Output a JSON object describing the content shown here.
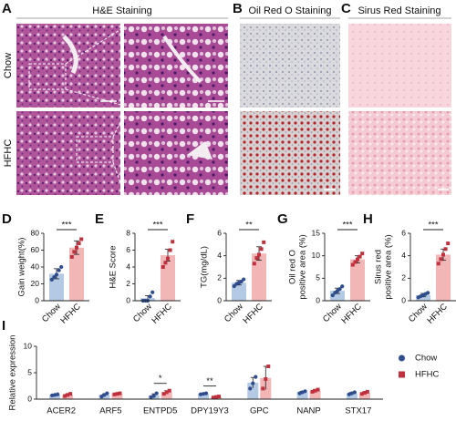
{
  "figure": {
    "panel_labels": [
      "A",
      "B",
      "C",
      "D",
      "E",
      "F",
      "G",
      "H",
      "I"
    ],
    "staining_titles": [
      "H&E Staining",
      "Oil Red O Staining",
      "Sirus Red Staining"
    ],
    "row_labels": [
      "Chow",
      "HFHC"
    ]
  },
  "chart_data": [
    {
      "type": "bar",
      "ylabel": [
        "Gain weight(%)"
      ],
      "categories": [
        "Chow",
        "HFHC"
      ],
      "values": [
        32,
        63
      ],
      "errors": [
        6,
        8
      ],
      "points": [
        [
          25,
          28,
          31,
          36,
          40
        ],
        [
          52,
          58,
          63,
          68,
          73
        ]
      ],
      "colors": [
        "#b4c9e4",
        "#f2b6b6"
      ],
      "point_colors": [
        "#2f4d8c",
        "#c0303d"
      ],
      "markers": [
        "circle",
        "square"
      ],
      "significance": "***",
      "ylim": [
        0,
        80
      ],
      "yticks": [
        0,
        20,
        40,
        60,
        80
      ]
    },
    {
      "type": "bar",
      "ylabel": [
        "H&E Score"
      ],
      "categories": [
        "Chow",
        "HFHC"
      ],
      "values": [
        0.3,
        5.4
      ],
      "errors": [
        0.3,
        0.7
      ],
      "points": [
        [
          0,
          0,
          0,
          0.5,
          1
        ],
        [
          4,
          4.5,
          5,
          6,
          7
        ]
      ],
      "colors": [
        "#b4c9e4",
        "#f2b6b6"
      ],
      "point_colors": [
        "#2f4d8c",
        "#c0303d"
      ],
      "markers": [
        "circle",
        "square"
      ],
      "significance": "***",
      "ylim": [
        0,
        8
      ],
      "yticks": [
        0,
        2,
        4,
        6,
        8
      ]
    },
    {
      "type": "bar",
      "ylabel": [
        "TG(mg/dL)"
      ],
      "categories": [
        "Chow",
        "HFHC"
      ],
      "values": [
        1.6,
        4.2
      ],
      "errors": [
        0.2,
        0.6
      ],
      "points": [
        [
          1.3,
          1.5,
          1.6,
          1.7,
          1.9
        ],
        [
          3.3,
          3.8,
          4.1,
          4.6,
          5.2
        ]
      ],
      "colors": [
        "#b4c9e4",
        "#f2b6b6"
      ],
      "point_colors": [
        "#2f4d8c",
        "#c0303d"
      ],
      "markers": [
        "circle",
        "square"
      ],
      "significance": "**",
      "ylim": [
        0,
        6
      ],
      "yticks": [
        0,
        2,
        4,
        6
      ]
    },
    {
      "type": "bar",
      "ylabel": [
        "Oil red O",
        "positive area (%)"
      ],
      "categories": [
        "Chow",
        "HFHC"
      ],
      "values": [
        2.2,
        9.2
      ],
      "errors": [
        0.6,
        0.8
      ],
      "points": [
        [
          1.2,
          1.8,
          2.2,
          2.6,
          3.2
        ],
        [
          8,
          8.6,
          9.2,
          9.8,
          10.5
        ]
      ],
      "colors": [
        "#b4c9e4",
        "#f2b6b6"
      ],
      "point_colors": [
        "#2f4d8c",
        "#c0303d"
      ],
      "markers": [
        "circle",
        "square"
      ],
      "significance": "***",
      "ylim": [
        0,
        15
      ],
      "yticks": [
        0,
        5,
        10,
        15
      ]
    },
    {
      "type": "bar",
      "ylabel": [
        "Sirus red",
        "positive area (%)"
      ],
      "categories": [
        "Chow",
        "HFHC"
      ],
      "values": [
        0.5,
        4.1
      ],
      "errors": [
        0.15,
        0.5
      ],
      "points": [
        [
          0.3,
          0.4,
          0.5,
          0.6,
          0.7
        ],
        [
          3.3,
          3.7,
          4.1,
          4.6,
          5.1
        ]
      ],
      "colors": [
        "#b4c9e4",
        "#f2b6b6"
      ],
      "point_colors": [
        "#2f4d8c",
        "#c0303d"
      ],
      "markers": [
        "circle",
        "square"
      ],
      "significance": "***",
      "ylim": [
        0,
        6
      ],
      "yticks": [
        0,
        2,
        4,
        6
      ]
    },
    {
      "type": "grouped_bar",
      "ylabel": "Relative expression",
      "categories": [
        "ACER2",
        "ARF5",
        "ENTPD5",
        "DPY19Y3",
        "GPC",
        "NANP",
        "STX17"
      ],
      "series": [
        {
          "name": "Chow",
          "color": "#b4c9e4",
          "point_color": "#2f4d8c",
          "marker": "circle",
          "values": [
            0.8,
            0.8,
            0.7,
            1.0,
            3.1,
            1.3,
            1.1
          ],
          "errors": [
            0.1,
            0.2,
            0.3,
            0.1,
            1.0,
            0.2,
            0.2
          ],
          "points": [
            [
              0.7,
              0.8,
              0.9
            ],
            [
              0.5,
              0.8,
              1.1
            ],
            [
              0.4,
              0.6,
              1.1
            ],
            [
              0.9,
              1.0,
              1.1
            ],
            [
              2.0,
              3.0,
              4.2
            ],
            [
              1.1,
              1.3,
              1.5
            ],
            [
              0.9,
              1.1,
              1.3
            ]
          ]
        },
        {
          "name": "HFHC",
          "color": "#f2b6b6",
          "point_color": "#c0303d",
          "marker": "square",
          "values": [
            0.8,
            1.0,
            1.3,
            0.4,
            4.0,
            1.6,
            1.2
          ],
          "errors": [
            0.2,
            0.1,
            0.3,
            0.1,
            2.2,
            0.2,
            0.2
          ],
          "points": [
            [
              0.6,
              0.8,
              1.0
            ],
            [
              0.9,
              1.0,
              1.1
            ],
            [
              1.0,
              1.3,
              1.6
            ],
            [
              0.3,
              0.4,
              0.5
            ],
            [
              2.0,
              3.8,
              6.2
            ],
            [
              1.4,
              1.6,
              1.8
            ],
            [
              1.0,
              1.2,
              1.4
            ]
          ]
        }
      ],
      "significance": [
        null,
        null,
        "*",
        "**",
        null,
        null,
        null
      ],
      "ylim": [
        0,
        10
      ],
      "yticks": [
        0,
        5,
        10
      ]
    }
  ]
}
